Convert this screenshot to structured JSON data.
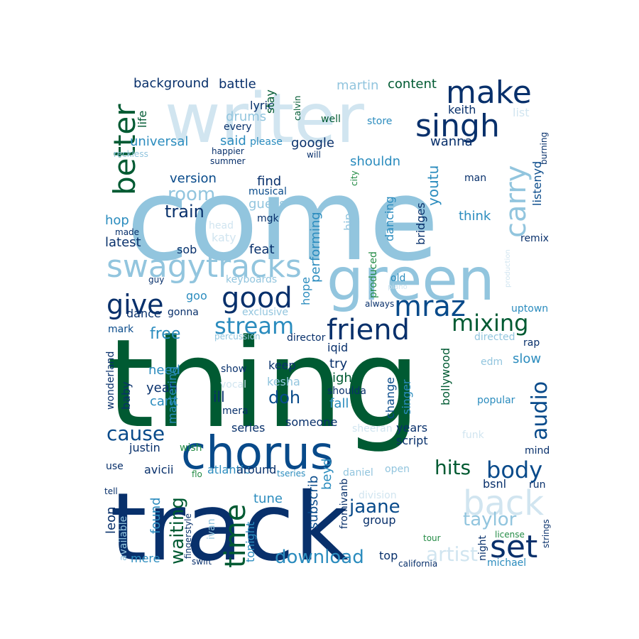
{
  "palette": {
    "navy": "#08306b",
    "blue": "#084a8a",
    "teal": "#2b8cbe",
    "light_blue": "#92c5de",
    "pale_blue": "#d1e5f0",
    "dark_green": "#005a32",
    "green": "#238b45",
    "mid_blue": "#4292c6"
  },
  "words": [
    {
      "text": "thing",
      "color": "dark_green"
    },
    {
      "text": "come",
      "color": "light_blue"
    },
    {
      "text": "track",
      "color": "navy"
    },
    {
      "text": "writer",
      "color": "pale_blue"
    },
    {
      "text": "chorus",
      "color": "blue"
    },
    {
      "text": "green",
      "color": "light_blue"
    },
    {
      "text": "swagytracks",
      "color": "light_blue"
    },
    {
      "text": "make",
      "color": "navy"
    },
    {
      "text": "singh",
      "color": "navy"
    },
    {
      "text": "better",
      "color": "dark_green"
    },
    {
      "text": "carry",
      "color": "light_blue"
    },
    {
      "text": "give",
      "color": "navy"
    },
    {
      "text": "good",
      "color": "navy"
    },
    {
      "text": "mraz",
      "color": "blue"
    },
    {
      "text": "friend",
      "color": "navy"
    },
    {
      "text": "stream",
      "color": "teal"
    },
    {
      "text": "mixing",
      "color": "dark_green"
    },
    {
      "text": "back",
      "color": "pale_blue"
    },
    {
      "text": "set",
      "color": "navy"
    },
    {
      "text": "body",
      "color": "blue"
    },
    {
      "text": "hits",
      "color": "dark_green"
    },
    {
      "text": "time",
      "color": "dark_green"
    },
    {
      "text": "audio",
      "color": "blue"
    },
    {
      "text": "room",
      "color": "light_blue"
    },
    {
      "text": "train",
      "color": "navy"
    },
    {
      "text": "cause",
      "color": "blue"
    },
    {
      "text": "waiting",
      "color": "dark_green"
    },
    {
      "text": "download",
      "color": "teal"
    },
    {
      "text": "artist",
      "color": "pale_blue"
    },
    {
      "text": "taylor",
      "color": "light_blue"
    },
    {
      "text": "jaane",
      "color": "blue"
    },
    {
      "text": "free",
      "color": "teal"
    },
    {
      "text": "doh",
      "color": "blue"
    },
    {
      "text": "background",
      "color": "navy"
    },
    {
      "text": "battle",
      "color": "navy"
    },
    {
      "text": "martin",
      "color": "light_blue"
    },
    {
      "text": "content",
      "color": "dark_green"
    },
    {
      "text": "lyric",
      "color": "navy"
    },
    {
      "text": "stay",
      "color": "dark_green"
    },
    {
      "text": "drums",
      "color": "light_blue"
    },
    {
      "text": "said",
      "color": "teal"
    },
    {
      "text": "every",
      "color": "navy"
    },
    {
      "text": "calvin",
      "color": "dark_green"
    },
    {
      "text": "well",
      "color": "dark_green"
    },
    {
      "text": "store",
      "color": "teal"
    },
    {
      "text": "keith",
      "color": "navy"
    },
    {
      "text": "list",
      "color": "pale_blue"
    },
    {
      "text": "life",
      "color": "dark_green"
    },
    {
      "text": "universal",
      "color": "teal"
    },
    {
      "text": "please",
      "color": "teal"
    },
    {
      "text": "google",
      "color": "navy"
    },
    {
      "text": "wanna",
      "color": "navy"
    },
    {
      "text": "shouldn",
      "color": "teal"
    },
    {
      "text": "burning",
      "color": "navy"
    },
    {
      "text": "reckless",
      "color": "light_blue"
    },
    {
      "text": "happier",
      "color": "navy"
    },
    {
      "text": "summer",
      "color": "navy"
    },
    {
      "text": "will",
      "color": "navy"
    },
    {
      "text": "version",
      "color": "blue"
    },
    {
      "text": "find",
      "color": "navy"
    },
    {
      "text": "musical",
      "color": "blue"
    },
    {
      "text": "guess",
      "color": "light_blue"
    },
    {
      "text": "mgk",
      "color": "navy"
    },
    {
      "text": "city",
      "color": "green"
    },
    {
      "text": "youtu",
      "color": "teal"
    },
    {
      "text": "dancing",
      "color": "teal"
    },
    {
      "text": "man",
      "color": "navy"
    },
    {
      "text": "listenyd",
      "color": "blue"
    },
    {
      "text": "hop",
      "color": "teal"
    },
    {
      "text": "made",
      "color": "navy"
    },
    {
      "text": "head",
      "color": "pale_blue"
    },
    {
      "text": "katy",
      "color": "pale_blue"
    },
    {
      "text": "hip",
      "color": "light_blue"
    },
    {
      "text": "bridges",
      "color": "navy"
    },
    {
      "text": "think",
      "color": "teal"
    },
    {
      "text": "remix",
      "color": "navy"
    },
    {
      "text": "latest",
      "color": "navy"
    },
    {
      "text": "performing",
      "color": "teal"
    },
    {
      "text": "sob",
      "color": "navy"
    },
    {
      "text": "feat",
      "color": "navy"
    },
    {
      "text": "produced",
      "color": "green"
    },
    {
      "text": "old",
      "color": "teal"
    },
    {
      "text": "guy",
      "color": "navy"
    },
    {
      "text": "keyboards",
      "color": "light_blue"
    },
    {
      "text": "piano",
      "color": "pale_blue"
    },
    {
      "text": "production",
      "color": "pale_blue"
    },
    {
      "text": "hope",
      "color": "teal"
    },
    {
      "text": "goo",
      "color": "teal"
    },
    {
      "text": "always",
      "color": "navy"
    },
    {
      "text": "exclusive",
      "color": "light_blue"
    },
    {
      "text": "dance",
      "color": "navy"
    },
    {
      "text": "gonna",
      "color": "navy"
    },
    {
      "text": "uptown",
      "color": "teal"
    },
    {
      "text": "mark",
      "color": "blue"
    },
    {
      "text": "percussion",
      "color": "light_blue"
    },
    {
      "text": "director",
      "color": "navy"
    },
    {
      "text": "iqid",
      "color": "navy"
    },
    {
      "text": "directed",
      "color": "light_blue"
    },
    {
      "text": "rap",
      "color": "navy"
    },
    {
      "text": "bollywood",
      "color": "dark_green"
    },
    {
      "text": "slow",
      "color": "teal"
    },
    {
      "text": "try",
      "color": "navy"
    },
    {
      "text": "edm",
      "color": "light_blue"
    },
    {
      "text": "need",
      "color": "teal"
    },
    {
      "text": "keep",
      "color": "navy"
    },
    {
      "text": "light",
      "color": "dark_green"
    },
    {
      "text": "show",
      "color": "navy"
    },
    {
      "text": "change",
      "color": "blue"
    },
    {
      "text": "singer",
      "color": "teal"
    },
    {
      "text": "yeah",
      "color": "navy"
    },
    {
      "text": "kesha",
      "color": "light_blue"
    },
    {
      "text": "vocal",
      "color": "pale_blue"
    },
    {
      "text": "shoulda",
      "color": "navy"
    },
    {
      "text": "wonderland",
      "color": "navy"
    },
    {
      "text": "baby",
      "color": "navy"
    },
    {
      "text": "cant",
      "color": "teal"
    },
    {
      "text": "mastering",
      "color": "teal"
    },
    {
      "text": "ill",
      "color": "navy"
    },
    {
      "text": "fall",
      "color": "teal"
    },
    {
      "text": "popular",
      "color": "teal"
    },
    {
      "text": "mera",
      "color": "navy"
    },
    {
      "text": "series",
      "color": "navy"
    },
    {
      "text": "someone",
      "color": "navy"
    },
    {
      "text": "years",
      "color": "navy"
    },
    {
      "text": "sheeran",
      "color": "pale_blue"
    },
    {
      "text": "funk",
      "color": "pale_blue"
    },
    {
      "text": "wish",
      "color": "green"
    },
    {
      "text": "justin",
      "color": "navy"
    },
    {
      "text": "script",
      "color": "navy"
    },
    {
      "text": "mind",
      "color": "navy"
    },
    {
      "text": "use",
      "color": "navy"
    },
    {
      "text": "flo",
      "color": "green"
    },
    {
      "text": "avicii",
      "color": "navy"
    },
    {
      "text": "atlantic",
      "color": "teal"
    },
    {
      "text": "around",
      "color": "navy"
    },
    {
      "text": "tseries",
      "color": "teal"
    },
    {
      "text": "daniel",
      "color": "light_blue"
    },
    {
      "text": "open",
      "color": "light_blue"
    },
    {
      "text": "beyd",
      "color": "teal"
    },
    {
      "text": "subscrib",
      "color": "blue"
    },
    {
      "text": "fromivanb",
      "color": "navy"
    },
    {
      "text": "tell",
      "color": "navy"
    },
    {
      "text": "bsnl",
      "color": "navy"
    },
    {
      "text": "division",
      "color": "pale_blue"
    },
    {
      "text": "run",
      "color": "navy"
    },
    {
      "text": "tune",
      "color": "teal"
    },
    {
      "text": "leon",
      "color": "navy"
    },
    {
      "text": "found",
      "color": "teal"
    },
    {
      "text": "tonight",
      "color": "teal"
    },
    {
      "text": "group",
      "color": "navy"
    },
    {
      "text": "fingerstyle",
      "color": "navy"
    },
    {
      "text": "ivan",
      "color": "light_blue"
    },
    {
      "text": "available",
      "color": "light_blue"
    },
    {
      "text": "strings",
      "color": "navy"
    },
    {
      "text": "license",
      "color": "green"
    },
    {
      "text": "tour",
      "color": "green"
    },
    {
      "text": "mere",
      "color": "teal"
    },
    {
      "text": "top",
      "color": "navy"
    },
    {
      "text": "night",
      "color": "navy"
    },
    {
      "text": "michael",
      "color": "teal"
    },
    {
      "text": "california",
      "color": "navy"
    },
    {
      "text": "swift",
      "color": "navy"
    }
  ]
}
